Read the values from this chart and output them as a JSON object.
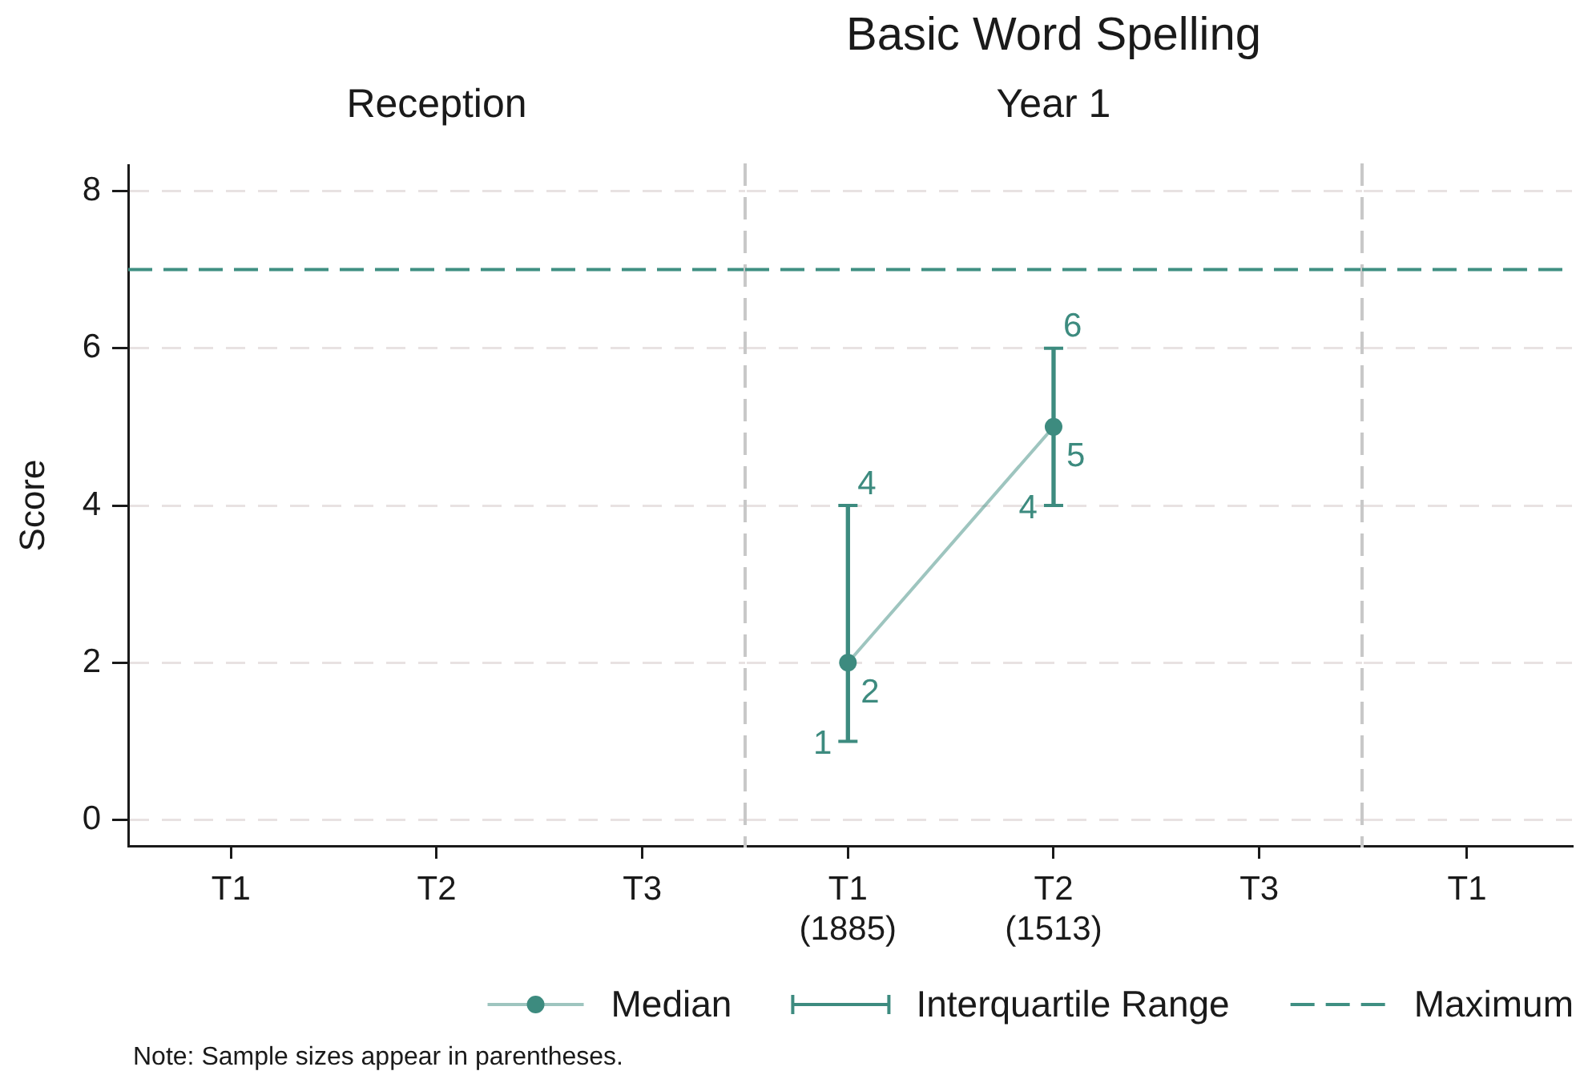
{
  "chart_data": [
    {
      "type": "line",
      "subtitle": "Reception",
      "ylabel": "Score",
      "categories": [
        "T1",
        "T2",
        "T3"
      ],
      "values": [
        null,
        null,
        null
      ],
      "ylim": [
        -0.33,
        8.33
      ],
      "yticks": [
        0,
        2,
        4,
        6,
        8
      ],
      "grid": "y",
      "ref_lines": [
        {
          "axis": "y",
          "value": 7,
          "color": "#3f8f82",
          "line_style": "dashed"
        }
      ],
      "annotations": [
        "Note: Sample sizes appear in parentheses."
      ]
    },
    {
      "type": "line",
      "title": "Basic Word Spelling",
      "subtitle": "Year 1",
      "categories": [
        "T1\n(1885)",
        "T2\n(1513)",
        "T3"
      ],
      "ylim": [
        -0.33,
        8.33
      ],
      "yticks": [
        0,
        2,
        4,
        6,
        8
      ],
      "tick_labels": "x",
      "grid": "y",
      "legend": "bottom",
      "series": [
        {
          "name": "Median",
          "type": "line",
          "marker": "circle",
          "color": "#3d8b7f",
          "values": [
            2,
            5,
            null
          ],
          "value_labels": [
            "2",
            "5",
            null
          ]
        },
        {
          "name": "Interquartile Range",
          "type": "bar",
          "color": "#3d8b7f",
          "base": [
            1,
            4,
            null
          ],
          "values": [
            3,
            2,
            null
          ]
        }
      ],
      "ref_lines": [
        {
          "axis": "y",
          "value": 7,
          "label": "Maximum",
          "color": "#3f8f82",
          "line_style": "dashed"
        }
      ],
      "annotations": [
        {
          "text": "4",
          "x": "T1\n(1885)",
          "y": 4
        },
        {
          "text": "1",
          "x": "T1\n(1885)",
          "y": 1
        },
        {
          "text": "6",
          "x": "T2\n(1513)",
          "y": 6
        },
        {
          "text": "4",
          "x": "T2\n(1513)",
          "y": 4
        }
      ]
    },
    {
      "type": "line",
      "categories": [
        "T1"
      ],
      "values": [
        null
      ],
      "ylim": [
        -0.33,
        8.33
      ],
      "yticks": [
        0,
        2,
        4,
        6,
        8
      ],
      "tick_labels": "x",
      "grid": "y",
      "ref_lines": [
        {
          "axis": "y",
          "value": 7,
          "color": "#3f8f82",
          "line_style": "dashed"
        }
      ]
    }
  ]
}
